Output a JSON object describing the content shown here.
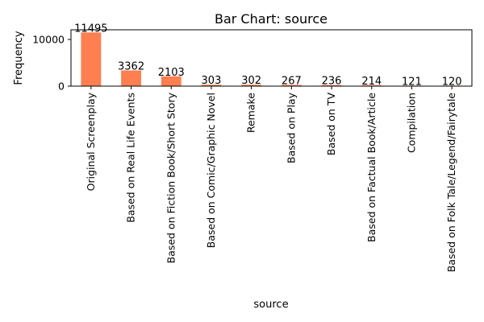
{
  "chart_data": {
    "type": "bar",
    "title": "Bar Chart: source",
    "xlabel": "source",
    "ylabel": "Frequency",
    "categories": [
      "Original Screenplay",
      "Based on Real Life Events",
      "Based on Fiction Book/Short Story",
      "Based on Comic/Graphic Novel",
      "Remake",
      "Based on Play",
      "Based on TV",
      "Based on Factual Book/Article",
      "Compilation",
      "Based on Folk Tale/Legend/Fairytale"
    ],
    "values": [
      11495,
      3362,
      2103,
      303,
      302,
      267,
      236,
      214,
      121,
      120
    ],
    "ylim": [
      0,
      12070
    ],
    "yticks": [
      0,
      10000
    ],
    "grid": false,
    "legend": "none",
    "bar_color": "#ff7f50",
    "show_value_labels": true
  }
}
